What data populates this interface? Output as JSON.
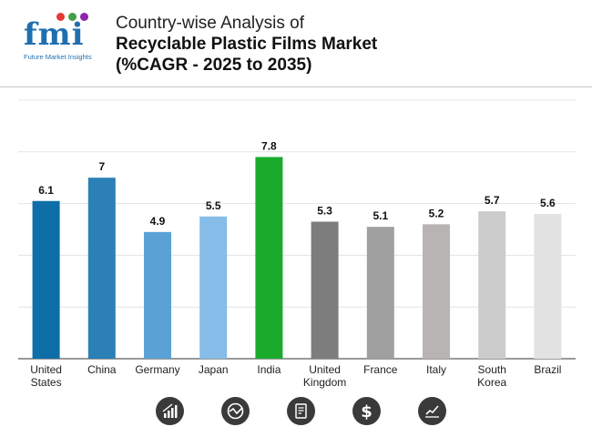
{
  "header": {
    "logo_text": "fmi",
    "logo_subtitle": "Future Market Insights",
    "title_line1": "Country-wise Analysis of",
    "title_line2": "Recyclable Plastic Films Market",
    "title_line3": "(%CAGR - 2025 to 2035)"
  },
  "colors": {
    "logo_blue": "#1f6fb0",
    "logo_dots": [
      "#e53935",
      "#43a047",
      "#8e24aa",
      "#fb8c00"
    ]
  },
  "chart_data": {
    "type": "bar",
    "title": "Country-wise Analysis of Recyclable Plastic Films Market (%CAGR - 2025 to 2035)",
    "xlabel": "",
    "ylabel": "",
    "ylim": [
      0,
      10
    ],
    "grid": true,
    "categories": [
      [
        "United",
        "States"
      ],
      [
        "China"
      ],
      [
        "Germany"
      ],
      [
        "Japan"
      ],
      [
        "India"
      ],
      [
        "United",
        "Kingdom"
      ],
      [
        "France"
      ],
      [
        "Italy"
      ],
      [
        "South",
        "Korea"
      ],
      [
        "Brazil"
      ]
    ],
    "values": [
      6.1,
      7,
      4.9,
      5.5,
      7.8,
      5.3,
      5.1,
      5.2,
      5.7,
      5.6
    ],
    "colors": [
      "#0e6ea8",
      "#2b80b8",
      "#5aa2d6",
      "#85bde8",
      "#1aaa2c",
      "#7d7d7d",
      "#a0a0a0",
      "#b8b4b3",
      "#cccccc",
      "#e2e2e2"
    ]
  },
  "footer_icons": [
    {
      "name": "bar-growth-icon"
    },
    {
      "name": "globe-chart-icon"
    },
    {
      "name": "report-document-icon"
    },
    {
      "name": "dollar-icon"
    },
    {
      "name": "trend-line-icon"
    }
  ]
}
